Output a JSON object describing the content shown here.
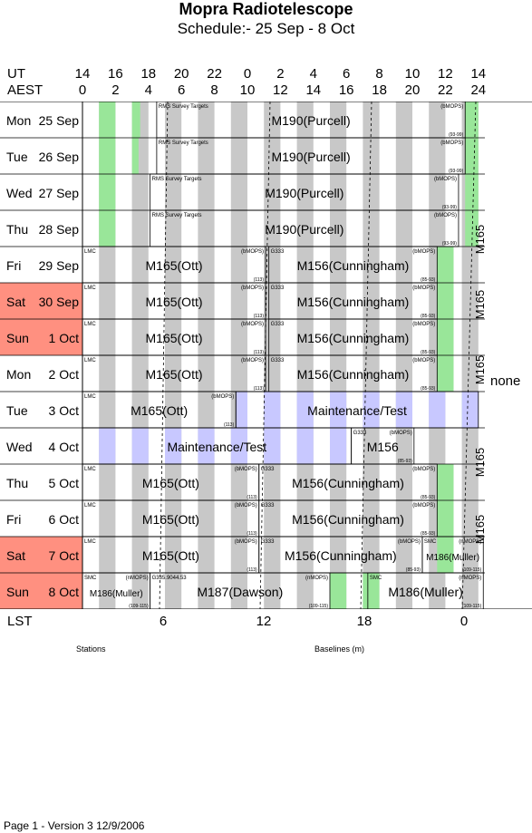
{
  "title": "Mopra Radiotelescope",
  "subtitle": "Schedule:- 25 Sep - 8  Oct",
  "ut_label": "UT",
  "aest_label": "AEST",
  "lst_label": "LST",
  "ut_ticks": [
    "14",
    "16",
    "18",
    "20",
    "22",
    "0",
    "2",
    "4",
    "6",
    "8",
    "10",
    "12",
    "14"
  ],
  "aest_ticks": [
    "0",
    "2",
    "4",
    "6",
    "8",
    "10",
    "12",
    "14",
    "16",
    "18",
    "20",
    "22",
    "24"
  ],
  "lst_ticks": [
    "6",
    "12",
    "18",
    "0"
  ],
  "days": [
    {
      "dow": "Mon",
      "date": "25 Sep",
      "weekend": false
    },
    {
      "dow": "Tue",
      "date": "26 Sep",
      "weekend": false
    },
    {
      "dow": "Wed",
      "date": "27 Sep",
      "weekend": false
    },
    {
      "dow": "Thu",
      "date": "28 Sep",
      "weekend": false
    },
    {
      "dow": "Fri",
      "date": "29 Sep",
      "weekend": false
    },
    {
      "dow": "Sat",
      "date": "30 Sep",
      "weekend": true
    },
    {
      "dow": "Sun",
      "date": "1 Oct",
      "weekend": true
    },
    {
      "dow": "Mon",
      "date": "2 Oct",
      "weekend": false
    },
    {
      "dow": "Tue",
      "date": "3 Oct",
      "weekend": false
    },
    {
      "dow": "Wed",
      "date": "4 Oct",
      "weekend": false
    },
    {
      "dow": "Thu",
      "date": "5 Oct",
      "weekend": false
    },
    {
      "dow": "Fri",
      "date": "6 Oct",
      "weekend": false
    },
    {
      "dow": "Sat",
      "date": "7 Oct",
      "weekend": true
    },
    {
      "dow": "Sun",
      "date": "8 Oct",
      "weekend": true
    }
  ],
  "blocks": [
    {
      "row": 0,
      "start": 4.5,
      "end": 23.2,
      "main": "M190(Purcell)",
      "tl": "RMS Survey Targets",
      "tr": "(bMOPS)",
      "br": "(93-99)"
    },
    {
      "row": 1,
      "start": 4.5,
      "end": 23.2,
      "main": "M190(Purcell)",
      "tl": "RMS Survey Targets",
      "tr": "(bMOPS)",
      "br": "(93-99)"
    },
    {
      "row": 2,
      "start": 4.1,
      "end": 22.8,
      "main": "M190(Purcell)",
      "tl": "RMS Survey Targets",
      "tr": "(bMOPS)",
      "br": "(93-99)"
    },
    {
      "row": 3,
      "start": 4.1,
      "end": 22.8,
      "main": "M190(Purcell)",
      "tl": "RMS Survey Targets",
      "tr": "(bMOPS)",
      "br": "(93-99)"
    },
    {
      "row": 4,
      "start": 0,
      "end": 11.1,
      "main": "M165(Ott)",
      "tl": "LMC",
      "tr": "(bMOPS)",
      "br": "(113)"
    },
    {
      "row": 4,
      "start": 11.3,
      "end": 21.5,
      "main": "M156(Cunningham)",
      "tl": "G333",
      "tr": "(bMOPS)",
      "br": "(85-93)"
    },
    {
      "row": 5,
      "start": 0,
      "end": 11.1,
      "main": "M165(Ott)",
      "tl": "LMC",
      "tr": "(bMOPS)",
      "br": "(113)"
    },
    {
      "row": 5,
      "start": 11.3,
      "end": 21.5,
      "main": "M156(Cunningham)",
      "tl": "G333",
      "tr": "(bMOPS)",
      "br": "(85-93)"
    },
    {
      "row": 6,
      "start": 0,
      "end": 11.1,
      "main": "M165(Ott)",
      "tl": "LMC",
      "tr": "(bMOPS)",
      "br": "(113)"
    },
    {
      "row": 6,
      "start": 11.3,
      "end": 21.5,
      "main": "M156(Cunningham)",
      "tl": "G333",
      "tr": "(bMOPS)",
      "br": "(85-93)"
    },
    {
      "row": 7,
      "start": 0,
      "end": 11.1,
      "main": "M165(Ott)",
      "tl": "LMC",
      "tr": "(bMOPS)",
      "br": "(113)"
    },
    {
      "row": 7,
      "start": 11.3,
      "end": 21.5,
      "main": "M156(Cunningham)",
      "tl": "G333",
      "tr": "(bMOPS)",
      "br": "(85-93)"
    },
    {
      "row": 8,
      "start": 0,
      "end": 9.3,
      "main": "M165(Ott)",
      "tl": "LMC",
      "tr": "(bMOPS)",
      "br": "(113)"
    },
    {
      "row": 8,
      "start": 9.3,
      "end": 24,
      "main": "Maintenance/Test",
      "tl": "",
      "tr": "",
      "br": ""
    },
    {
      "row": 9,
      "start": 0,
      "end": 16.3,
      "main": "Maintenance/Test",
      "tl": "",
      "tr": "",
      "br": ""
    },
    {
      "row": 9,
      "start": 16.3,
      "end": 20.1,
      "main": "M156",
      "tl": "G333",
      "tr": "(bMOPS)",
      "br": "(85-93)"
    },
    {
      "row": 10,
      "start": 0,
      "end": 10.7,
      "main": "M165(Ott)",
      "tl": "LMC",
      "tr": "(bMOPS)",
      "br": "(113)"
    },
    {
      "row": 10,
      "start": 10.7,
      "end": 21.5,
      "main": "M156(Cunningham)",
      "tl": "G333",
      "tr": "(bMOPS)",
      "br": "(85-93)"
    },
    {
      "row": 11,
      "start": 0,
      "end": 10.7,
      "main": "M165(Ott)",
      "tl": "LMC",
      "tr": "(bMOPS)",
      "br": "(113)"
    },
    {
      "row": 11,
      "start": 10.7,
      "end": 21.5,
      "main": "M156(Cunningham)",
      "tl": "G333",
      "tr": "(bMOPS)",
      "br": "(85-93)"
    },
    {
      "row": 12,
      "start": 0,
      "end": 10.7,
      "main": "M165(Ott)",
      "tl": "LMC",
      "tr": "(bMOPS)",
      "br": "(113)"
    },
    {
      "row": 12,
      "start": 10.7,
      "end": 20.6,
      "main": "M156(Cunningham)",
      "tl": "G333",
      "tr": "(bMOPS)",
      "br": "(85-93)"
    },
    {
      "row": 12,
      "start": 20.6,
      "end": 24.3,
      "main": "M186(Muller)",
      "tl": "SMC",
      "tr": "(nMOPS)",
      "br": "(109-115)",
      "small": true
    },
    {
      "row": 13,
      "start": 0,
      "end": 4.1,
      "main": "M186(Muller)",
      "tl": "SMC",
      "tr": "(nMOPS)",
      "br": "(109-115)",
      "small": true
    },
    {
      "row": 13,
      "start": 4.1,
      "end": 15,
      "main": "M187(Dawson)",
      "tl": "G335.9044.53",
      "tr": "(nMOPS)",
      "br": "(109-115)"
    },
    {
      "row": 13,
      "start": 17.3,
      "end": 24.3,
      "main": "M186(Muller)",
      "tl": "SMC",
      "tr": "(nMOPS)",
      "br": "(109-115)"
    }
  ],
  "vertical_labels": [
    {
      "text": "M165",
      "row_from": 2.9,
      "row_to": 4.7
    },
    {
      "text": "M165",
      "row_from": 4.7,
      "row_to": 6.5
    },
    {
      "text": "M165",
      "row_from": 6.5,
      "row_to": 8.3
    },
    {
      "text": "M165",
      "row_from": 9.0,
      "row_to": 10.9
    },
    {
      "text": "M165",
      "row_from": 10.9,
      "row_to": 12.7
    }
  ],
  "none_label": "none",
  "footer_left": "Stations",
  "footer_right": "Baselines (m)",
  "page_footer": "Page 1 - Version 3  12/9/2006",
  "colors": {
    "gray": "#c8c8c8",
    "green": "#99e699",
    "maint": "#c8c8ff",
    "weekend": "#ff9080"
  }
}
